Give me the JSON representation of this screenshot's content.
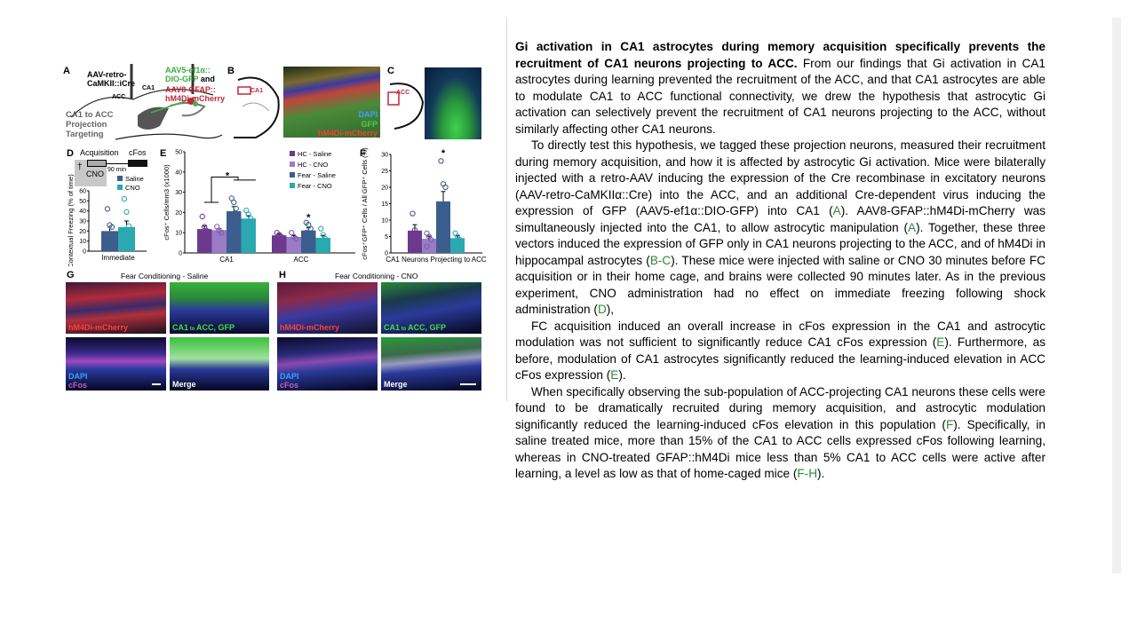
{
  "figure": {
    "panel_letters": [
      "A",
      "B",
      "C",
      "D",
      "E",
      "F",
      "G",
      "H"
    ],
    "panel_a": {
      "retro": "AAV-retro-",
      "retro2": "CaMKII::iCre",
      "aav5": "AAV5-ef1α::",
      "aav5b": "DIO-GFP",
      "and": "and",
      "aav8": "AAV8-GFAP::",
      "aav8b": "hM4Di-mCherry",
      "acc": "ACC",
      "ca1": "CA1",
      "title1": "CA1 to ACC",
      "title2": "Projection",
      "title3": "Targeting"
    },
    "panel_b": {
      "region": "CA1",
      "dapi": "DAPI",
      "gfp": "GFP",
      "mcherry": "hM4Di-mCherry"
    },
    "panel_c": {
      "region": "ACC"
    },
    "panel_d": {
      "acquisition": "Acquisition",
      "cfos": "cFos",
      "interval": "90 min",
      "cno": "CNO"
    },
    "panel_g": {
      "title": "Fear Conditioning - Saline",
      "mcherry": "hM4Di-mCherry",
      "gfp_a": "CA1",
      "gfp_to": "to",
      "gfp_b": "ACC, GFP",
      "dapi": "DAPI",
      "cfos": "cFos",
      "merge": "Merge"
    },
    "panel_h": {
      "title": "Fear Conditioning - CNO",
      "mcherry": "hM4Di-mCherry",
      "gfp_a": "CA1",
      "gfp_to": "to",
      "gfp_b": "ACC, GFP",
      "dapi": "DAPI",
      "cfos": "cFos",
      "merge": "Merge"
    },
    "colors": {
      "hc_saline": "#6b3a8e",
      "hc_cno": "#9a7cc6",
      "fear_saline": "#3b5e8e",
      "fear_cno": "#2aa9b1",
      "ref_green": "#2e8b2e"
    }
  },
  "chart_data": [
    {
      "panel": "D",
      "type": "bar",
      "categories": [
        "Immediate"
      ],
      "ylabel": "Contextual Freezing (% of time)",
      "ylim": [
        0,
        60
      ],
      "yticks": [
        0,
        10,
        20,
        30,
        40,
        50,
        60
      ],
      "legend": "top-right",
      "series": [
        {
          "name": "Saline",
          "values": [
            20
          ],
          "sem": [
            4
          ],
          "points": [
            42,
            26,
            24,
            15,
            9,
            4
          ],
          "color": "#3b5e8e"
        },
        {
          "name": "CNO",
          "values": [
            24
          ],
          "sem": [
            6
          ],
          "points": [
            52,
            39,
            25,
            21,
            5
          ],
          "color": "#2aa9b1"
        }
      ]
    },
    {
      "panel": "E",
      "type": "bar",
      "categories": [
        "CA1",
        "ACC"
      ],
      "ylabel": "cFos⁺ Cells/mm3 (x1000)",
      "ylim": [
        0,
        50
      ],
      "yticks": [
        0,
        10,
        20,
        30,
        40,
        50
      ],
      "legend": "top-right",
      "significance": [
        "*",
        "*"
      ],
      "series": [
        {
          "name": "HC - Saline",
          "values": [
            11.8,
            8.7
          ],
          "sem": [
            1.5,
            0.8
          ],
          "points": [
            [
              18,
              13,
              11,
              10,
              8
            ],
            [
              10,
              9,
              8,
              7
            ]
          ],
          "color": "#6b3a8e"
        },
        {
          "name": "HC - CNO",
          "values": [
            11.3,
            7.9
          ],
          "sem": [
            0.8,
            0.7
          ],
          "points": [
            [
              13,
              11,
              10
            ],
            [
              10,
              8,
              7
            ]
          ],
          "color": "#9a7cc6"
        },
        {
          "name": "Fear - Saline",
          "values": [
            20.6,
            11.1
          ],
          "sem": [
            2.3,
            1.3
          ],
          "points": [
            [
              27,
              25,
              22,
              19,
              15,
              12,
              7
            ],
            [
              15,
              14,
              12,
              10,
              6
            ]
          ],
          "color": "#3b5e8e"
        },
        {
          "name": "Fear - CNO",
          "values": [
            17.0,
            7.5
          ],
          "sem": [
            1.4,
            1.2
          ],
          "points": [
            [
              21,
              19,
              17,
              15,
              12,
              10
            ],
            [
              12,
              9,
              7,
              5
            ]
          ],
          "color": "#2aa9b1"
        }
      ]
    },
    {
      "panel": "F",
      "type": "bar",
      "categories": [
        "CA1 Neurons Projecting to ACC"
      ],
      "ylabel": "cFos⁺GFP⁺ Cells / All GFP⁺ Cells (%)",
      "ylim": [
        0,
        30
      ],
      "yticks": [
        0,
        5,
        10,
        15,
        20,
        25,
        30
      ],
      "significance": [
        "*"
      ],
      "series": [
        {
          "values": [
            6.8
          ],
          "sem": [
            1.8
          ],
          "points": [
            12,
            7,
            5,
            2,
            1
          ],
          "color": "#6b3a8e"
        },
        {
          "values": [
            4.3
          ],
          "sem": [
            0.8
          ],
          "points": [
            6,
            5,
            4,
            2
          ],
          "color": "#9a7cc6"
        },
        {
          "values": [
            15.7
          ],
          "sem": [
            3.0
          ],
          "points": [
            28,
            21,
            20,
            14,
            8,
            5
          ],
          "color": "#3b5e8e"
        },
        {
          "values": [
            4.5
          ],
          "sem": [
            0.7
          ],
          "points": [
            6,
            5,
            4,
            2
          ],
          "color": "#2aa9b1"
        }
      ]
    }
  ],
  "text": {
    "paragraphs": [
      {
        "indent": false,
        "segments": [
          {
            "b": true,
            "t": "Gi activation in CA1 astrocytes during memory acquisition specifically prevents the recruitment of CA1 neurons projecting to ACC."
          },
          {
            "t": " From our findings that Gi activation in CA1 astrocytes during learning prevented the recruitment of the ACC, and that CA1 astrocytes are able to modulate CA1 to ACC functional connectivity, we drew the hypothesis that astrocytic Gi activation can selectively prevent the recruitment of CA1 neurons projecting to the ACC, without similarly affecting other CA1 neurons."
          }
        ]
      },
      {
        "indent": true,
        "segments": [
          {
            "t": "To directly test this hypothesis, we tagged these projection neurons, measured their recruitment during memory acquisition, and how it is affected by astrocytic Gi activation. Mice were bilaterally injected with a retro-AAV inducing the expression of the Cre recombinase in excitatory neurons (AAV-retro-CaMKIIα::Cre) into the ACC, and an additional Cre-dependent virus inducing the expression of GFP (AAV5-ef1α::DIO-GFP) into CA1 ("
          },
          {
            "r": true,
            "t": "A"
          },
          {
            "t": "). AAV8-GFAP::hM4Di-mCherry was simultaneously injected into the CA1, to allow astrocytic manipulation ("
          },
          {
            "r": true,
            "t": "A"
          },
          {
            "t": "). Together, these three vectors induced the expression of GFP only in CA1 neurons projecting to the ACC, and of hM4Di in hippocampal astrocytes ("
          },
          {
            "r": true,
            "t": "B-C"
          },
          {
            "t": "). These mice were injected with saline or CNO 30 minutes before FC acquisition or in their home cage, and brains were collected 90 minutes later. As in the previous experiment, CNO administration had no effect on immediate freezing following shock administration ("
          },
          {
            "r": true,
            "t": "D"
          },
          {
            "t": "),"
          }
        ]
      },
      {
        "indent": true,
        "segments": [
          {
            "t": " FC acquisition induced an overall increase in cFos expression in the CA1 and astrocytic modulation was not sufficient to significantly reduce CA1 cFos expression ("
          },
          {
            "r": true,
            "t": "E"
          },
          {
            "t": "). Furthermore, as before, modulation of CA1 astrocytes significantly reduced the learning-induced elevation in ACC cFos expression ("
          },
          {
            "r": true,
            "t": "E"
          },
          {
            "t": ")."
          }
        ]
      },
      {
        "indent": true,
        "segments": [
          {
            "t": "When specifically observing the sub-population of ACC-projecting CA1 neurons these cells were found to be dramatically recruited during memory acquisition, and astrocytic modulation significantly reduced the learning-induced cFos elevation in this population ("
          },
          {
            "r": true,
            "t": "F"
          },
          {
            "t": "). Specifically, in saline treated mice, more than 15% of the CA1 to ACC cells expressed cFos following learning, whereas in CNO-treated GFAP::hM4Di mice less than  5% CA1 to ACC cells were active after learning, a level as low as that of home-caged mice ("
          },
          {
            "r": true,
            "t": "F-H"
          },
          {
            "t": ")."
          }
        ]
      }
    ]
  }
}
